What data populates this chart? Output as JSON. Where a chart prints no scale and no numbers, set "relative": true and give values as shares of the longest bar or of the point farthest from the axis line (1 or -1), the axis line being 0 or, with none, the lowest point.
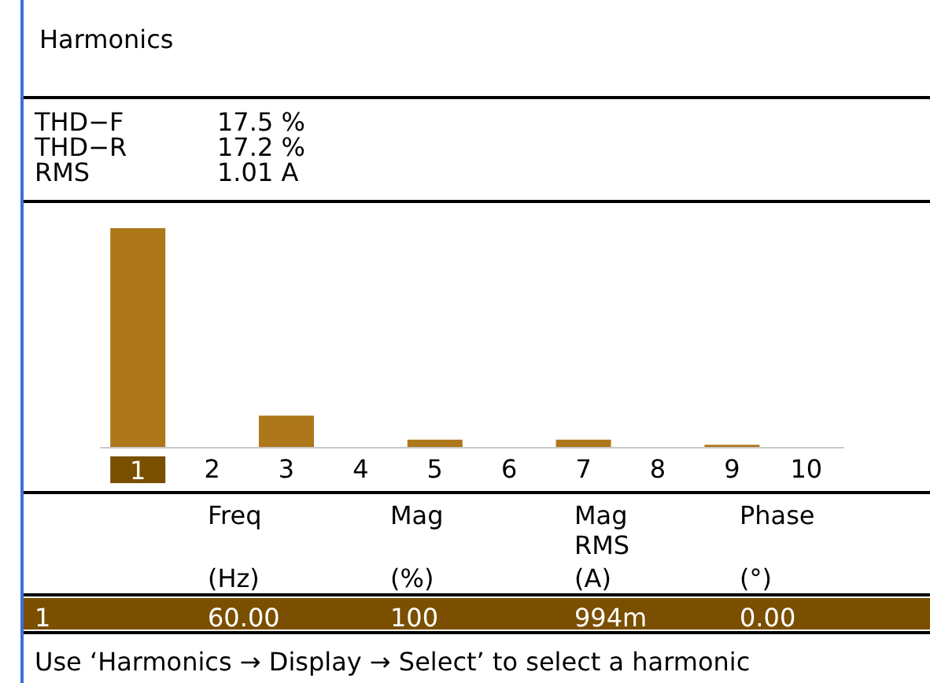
{
  "chart_data": {
    "type": "bar",
    "title": "Harmonics",
    "relative": true,
    "categories": [
      "1",
      "2",
      "3",
      "4",
      "5",
      "6",
      "7",
      "8",
      "9",
      "10"
    ],
    "values": [
      1,
      0,
      0.143,
      0,
      0.033,
      0,
      0.033,
      0,
      0.01,
      0
    ],
    "color": "#ae7719",
    "grid": false,
    "annotations": [
      "THD−F",
      "17.5 %",
      "THD−R",
      "17.2 %",
      "RMS",
      "1.01 A",
      "Freq",
      "Mag",
      "Mag\nRMS",
      "Phase",
      "(Hz)",
      "(%)",
      "(A)",
      "(°)",
      "1",
      "60.00",
      "100",
      "994m",
      "0.00",
      "Use ‘Harmonics → Display → Select’ to select a harmonic"
    ]
  }
}
